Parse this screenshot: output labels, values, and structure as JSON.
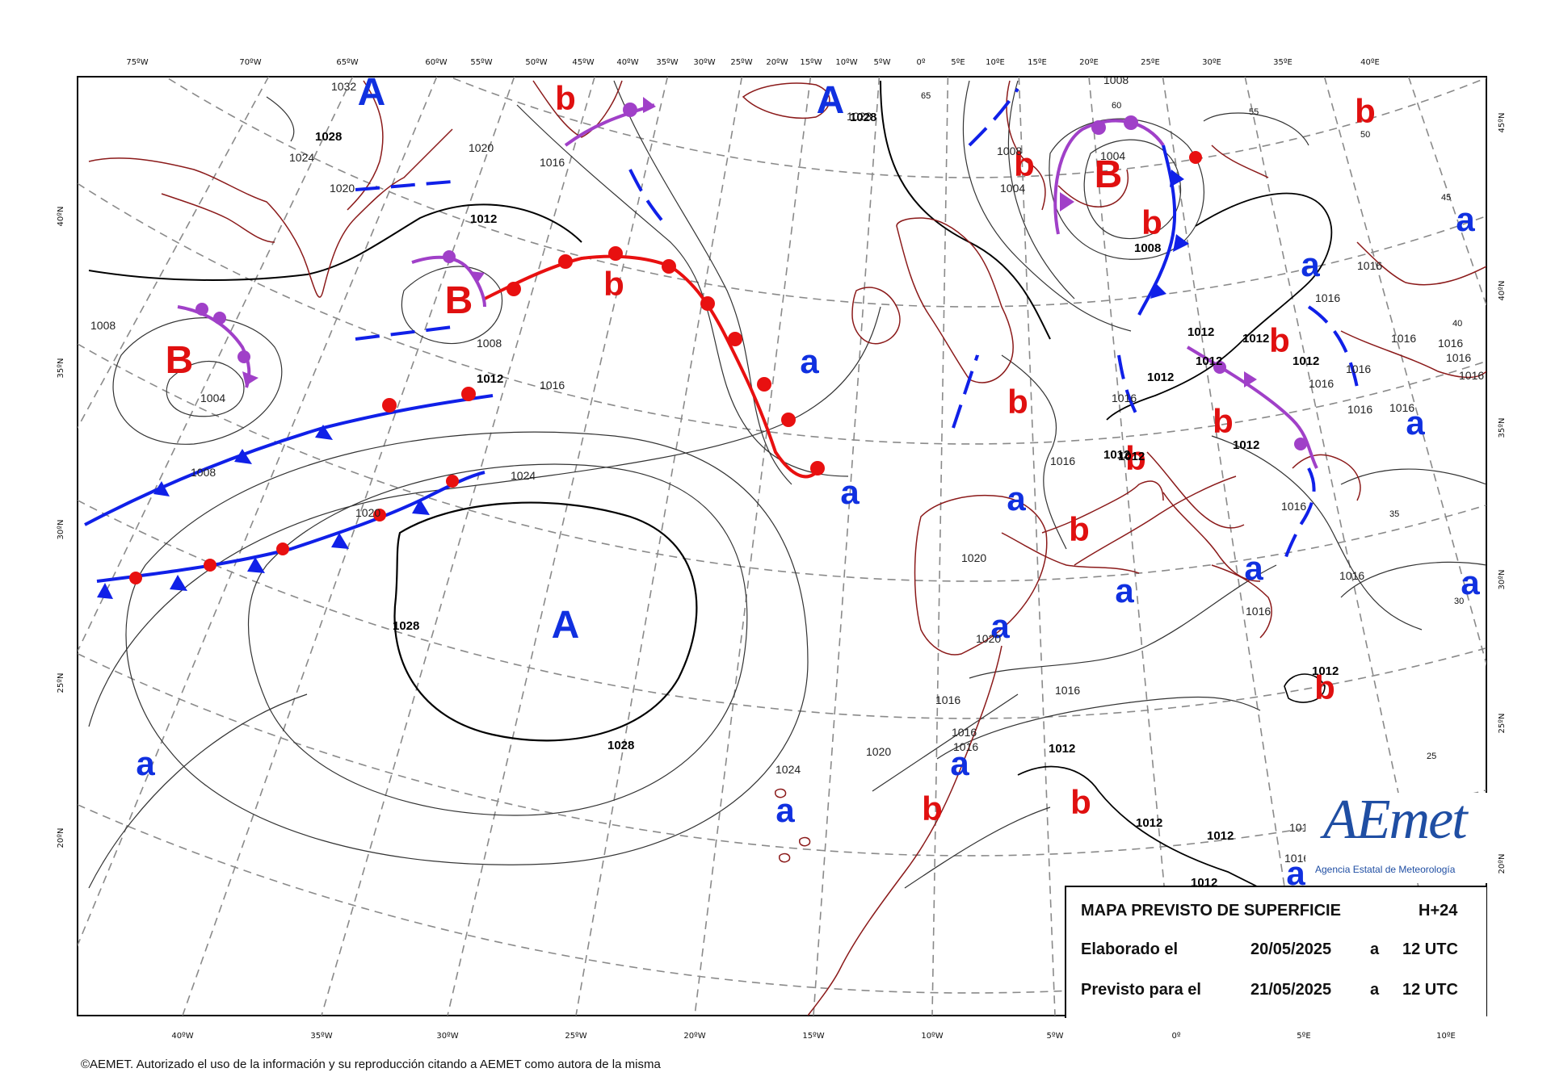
{
  "map": {
    "top_lon_labels": [
      "75ºW",
      "70ºW",
      "65ºW",
      "60ºW",
      "55ºW",
      "50ºW",
      "45ºW",
      "40ºW",
      "35ºW",
      "30ºW",
      "25ºW",
      "20ºW",
      "15ºW",
      "10ºW",
      "5ºW",
      "0º",
      "5ºE",
      "10ºE",
      "15ºE",
      "20ºE",
      "25ºE",
      "30ºE",
      "35ºE",
      "40ºE"
    ],
    "bottom_lon_labels": [
      "40ºW",
      "35ºW",
      "30ºW",
      "25ºW",
      "20ºW",
      "15ºW",
      "10ºW",
      "5ºW",
      "0º",
      "5ºE",
      "10ºE"
    ],
    "left_lat_labels": [
      "40ºN",
      "35ºN",
      "30ºN",
      "25ºN",
      "20ºN"
    ],
    "right_lat_labels": [
      "45ºN",
      "40ºN",
      "35ºN",
      "30ºN",
      "25ºN",
      "20ºN"
    ],
    "interior_grid_labels": [
      "65",
      "60",
      "55",
      "50",
      "45",
      "40",
      "35",
      "30",
      "25"
    ],
    "isobar_labels": [
      "1032",
      "1028",
      "1024",
      "1020",
      "1016",
      "1012",
      "1008",
      "1004"
    ],
    "pressure_systems": {
      "high_major": "A",
      "low_major": "B",
      "high_minor": "a",
      "low_minor": "b"
    },
    "colors": {
      "high": "#1030e0",
      "low": "#e01010",
      "warm_front": "#e81010",
      "cold_front": "#1020e8",
      "occluded_front": "#a040c8",
      "coastline": "#8b1a1a",
      "grid": "#888888",
      "isobar": "#333333"
    }
  },
  "info_box": {
    "title": "MAPA PREVISTO DE SUPERFICIE",
    "horizon": "H+24",
    "elaborated_label": "Elaborado el",
    "elaborated_date": "20/05/2025",
    "elaborated_at": "a",
    "elaborated_time": "12 UTC",
    "valid_label": "Previsto para el",
    "valid_date": "21/05/2025",
    "valid_at": "a",
    "valid_time": "12 UTC"
  },
  "logo": {
    "word": "AEmet",
    "subtitle": "Agencia Estatal de Meteorología"
  },
  "copyright": "©AEMET. Autorizado el uso de la información y su reproducción citando a AEMET como autora de la misma"
}
